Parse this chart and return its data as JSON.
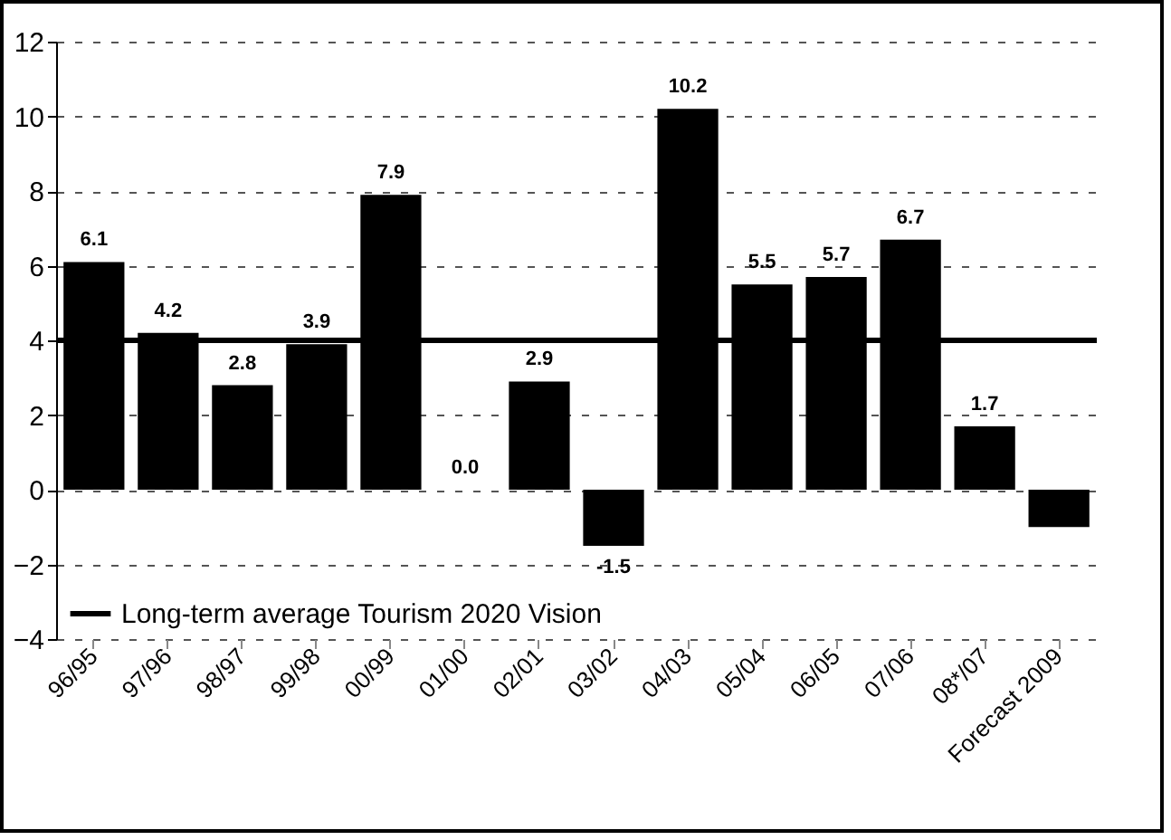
{
  "chart_data": {
    "type": "bar",
    "categories": [
      "96/95",
      "97/96",
      "98/97",
      "99/98",
      "00/99",
      "01/00",
      "02/01",
      "03/02",
      "04/03",
      "05/04",
      "06/05",
      "07/06",
      "08*/07",
      "Forecast 2009"
    ],
    "values": [
      6.1,
      4.2,
      2.8,
      3.9,
      7.9,
      0.0,
      2.9,
      -1.5,
      10.2,
      5.5,
      5.7,
      6.7,
      1.7,
      -1.0
    ],
    "value_labels": [
      "6.1",
      "4.2",
      "2.8",
      "3.9",
      "7.9",
      "0.0",
      "2.9",
      "-1.5",
      "10.2",
      "5.5",
      "5.7",
      "6.7",
      "1.7",
      null
    ],
    "color": "#000000",
    "ylim": [
      -4,
      12
    ],
    "yticks": [
      -4,
      -2,
      0,
      2,
      4,
      6,
      8,
      10,
      12
    ],
    "grid": "y",
    "ref_lines": [
      {
        "axis": "y",
        "value": 4,
        "label": "Long-term average Tourism 2020 Vision",
        "color": "#000000",
        "line_style": "solid"
      }
    ],
    "legend": "bottom left"
  }
}
